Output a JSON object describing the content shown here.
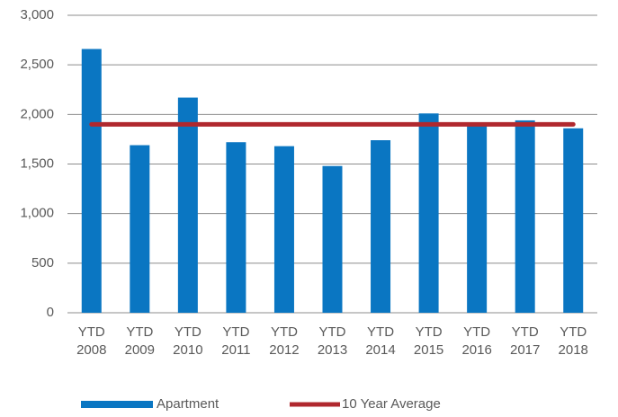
{
  "chart_data": {
    "type": "bar",
    "categories": [
      "YTD 2008",
      "YTD 2009",
      "YTD 2010",
      "YTD 2011",
      "YTD 2012",
      "YTD 2013",
      "YTD 2014",
      "YTD 2015",
      "YTD 2016",
      "YTD 2017",
      "YTD 2018"
    ],
    "series": [
      {
        "name": "Apartment",
        "type": "bar",
        "color": "#0a76c2",
        "values": [
          2660,
          1690,
          2170,
          1720,
          1680,
          1480,
          1740,
          2010,
          1900,
          1940,
          1860
        ]
      },
      {
        "name": "10 Year Average",
        "type": "line",
        "color": "#b0282e",
        "values": [
          1900,
          1900,
          1900,
          1900,
          1900,
          1900,
          1900,
          1900,
          1900,
          1900,
          1900
        ]
      }
    ],
    "ylim": [
      0,
      3000
    ],
    "yticks": [
      0,
      500,
      {
        "value": 1000,
        "label": "1,000"
      },
      {
        "value": 1500,
        "label": "1,500"
      },
      {
        "value": 2000,
        "label": "2,000"
      },
      {
        "value": 2500,
        "label": "2,500"
      },
      {
        "value": 3000,
        "label": "3,000"
      }
    ],
    "grid": true,
    "legend": "bottom"
  }
}
